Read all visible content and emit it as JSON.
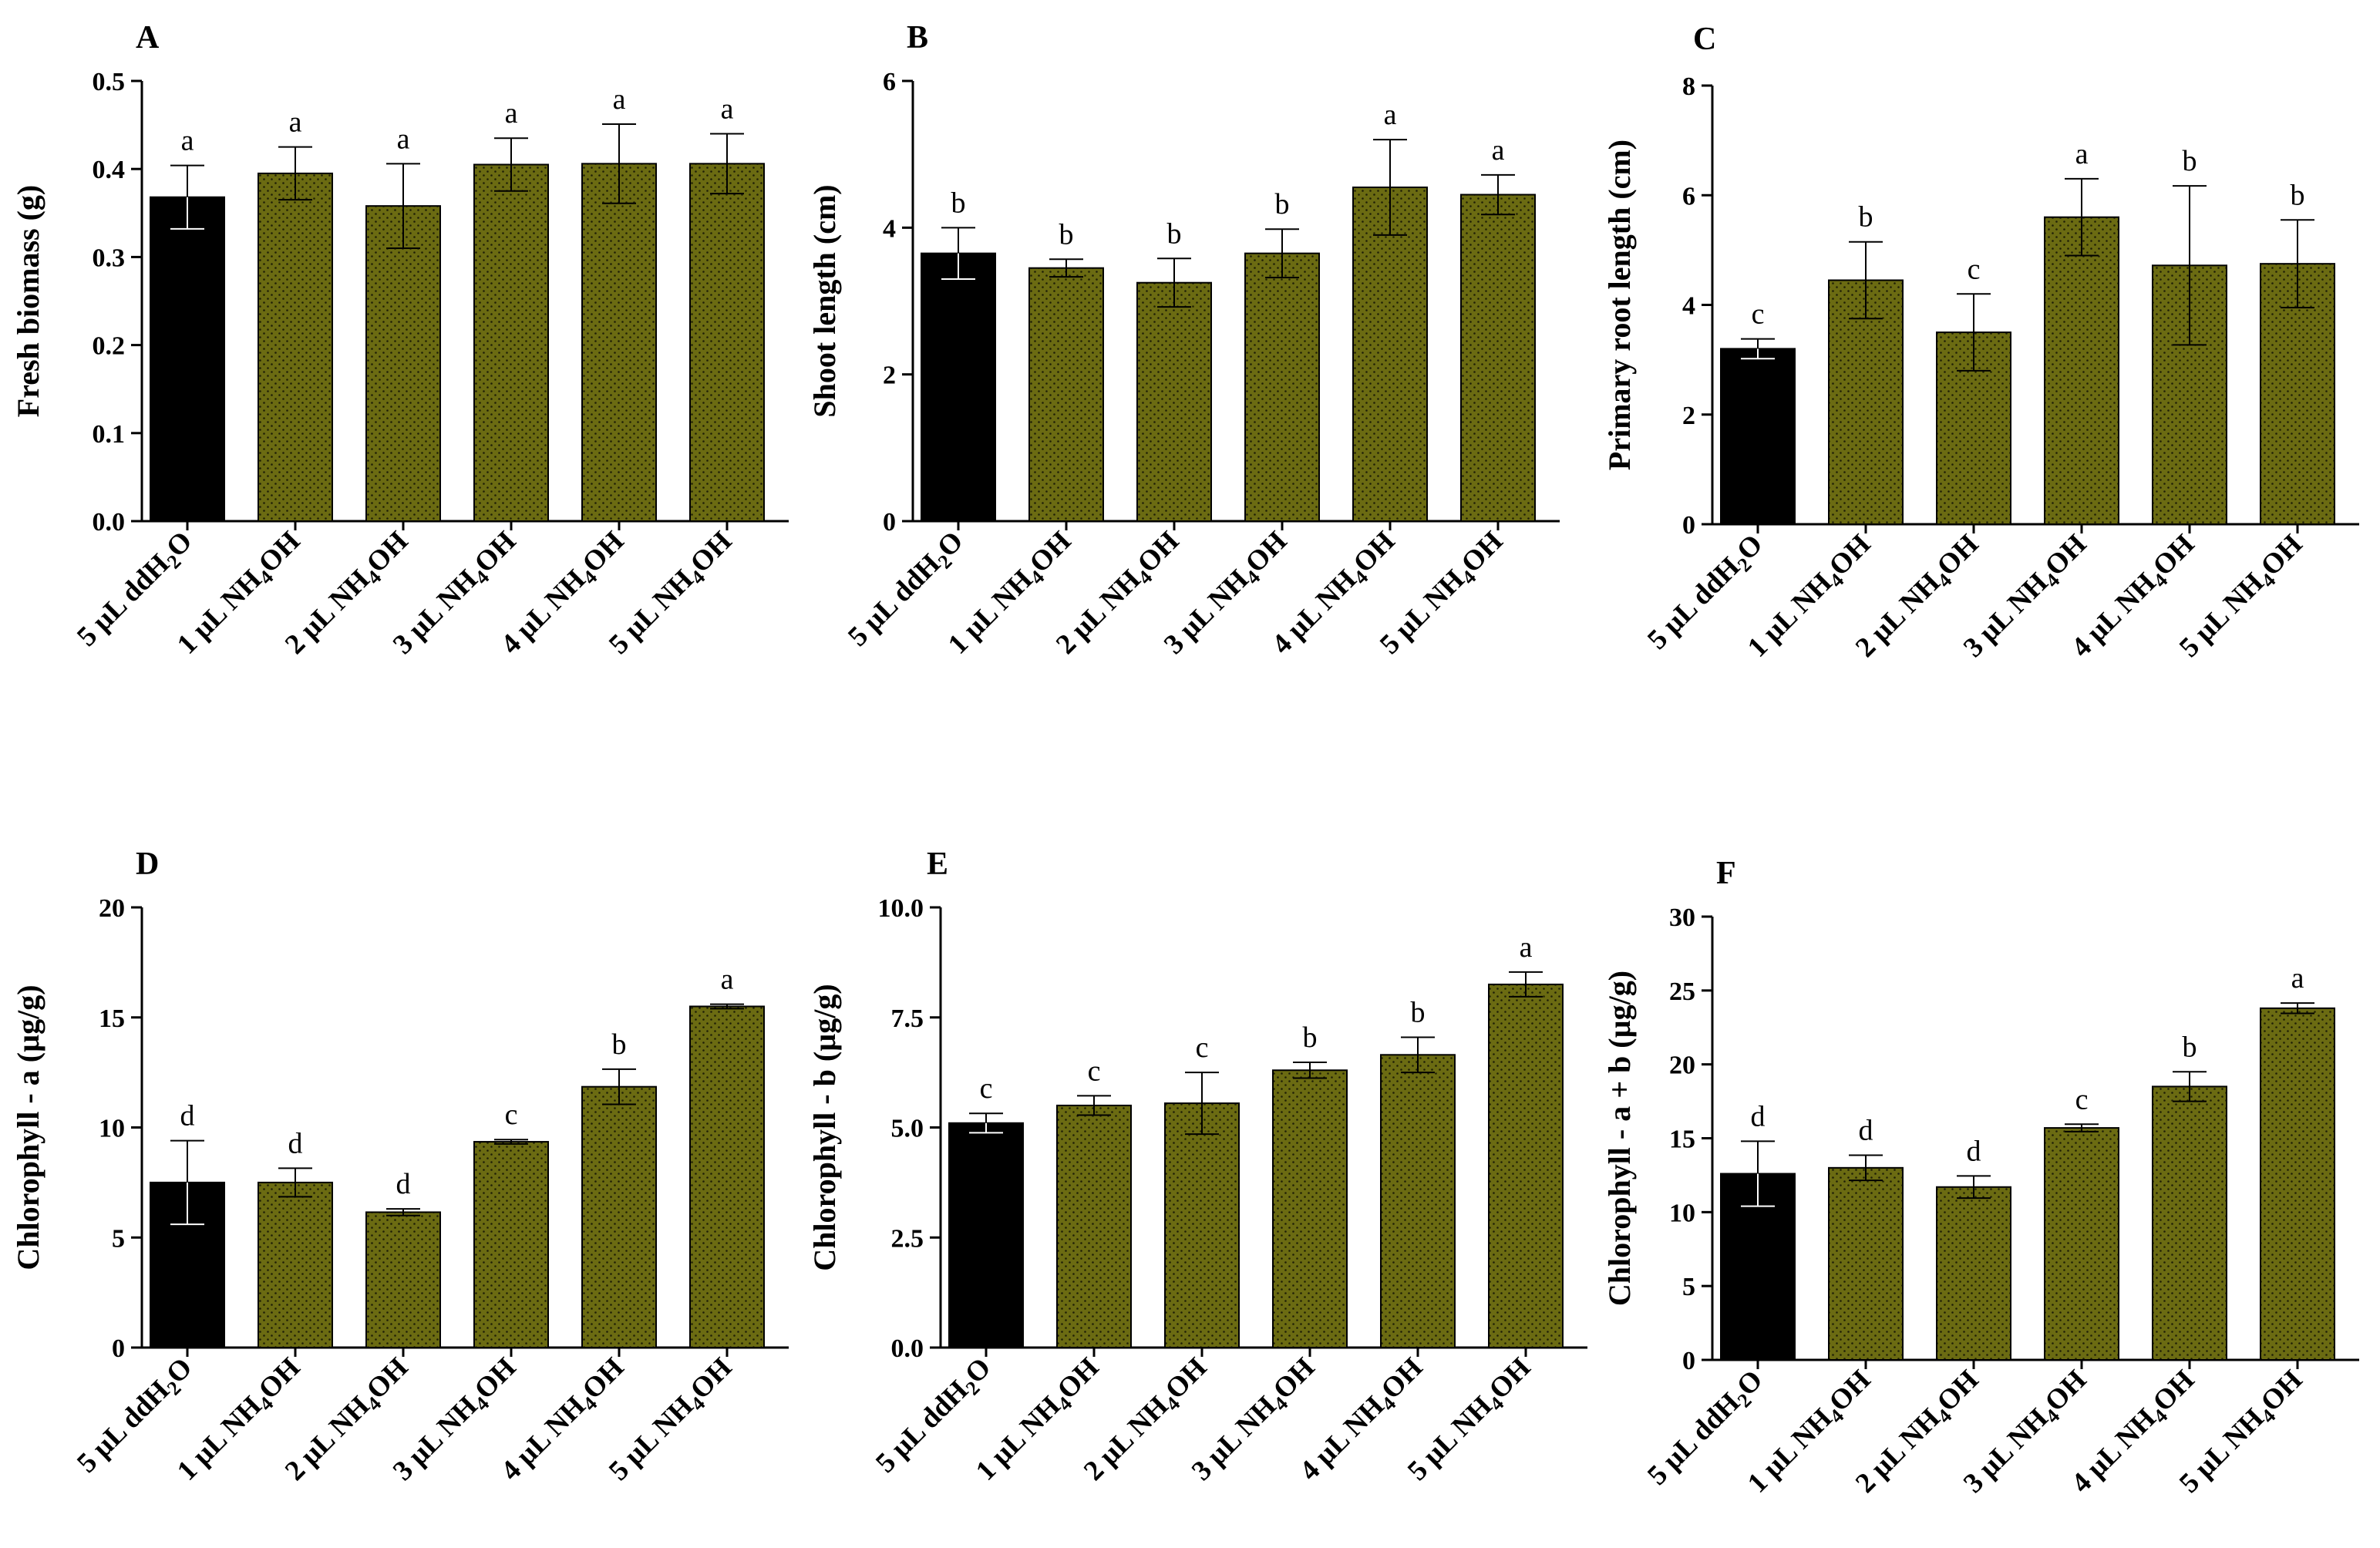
{
  "colors": {
    "control": "#000000",
    "treatment": "#6b6b12",
    "dot": "#1f1f06",
    "axis": "#000000"
  },
  "x_categories": [
    {
      "pre": "5 µL ddH",
      "sub": "2",
      "post": "O"
    },
    {
      "pre": "1 µL NH",
      "sub": "4",
      "post": "OH"
    },
    {
      "pre": "2 µL NH",
      "sub": "4",
      "post": "OH"
    },
    {
      "pre": "3 µL NH",
      "sub": "4",
      "post": "OH"
    },
    {
      "pre": "4 µL NH",
      "sub": "4",
      "post": "OH"
    },
    {
      "pre": "5 µL NH",
      "sub": "4",
      "post": "OH"
    }
  ],
  "chart_data": [
    {
      "type": "bar",
      "panel": "A",
      "ylabel": "Fresh biomass (g)",
      "ylim": [
        0,
        0.5
      ],
      "yticks": [
        "0.0",
        "0.1",
        "0.2",
        "0.3",
        "0.4",
        "0.5"
      ],
      "categories": [
        "5 µL ddH2O",
        "1 µL NH4OH",
        "2 µL NH4OH",
        "3 µL NH4OH",
        "4 µL NH4OH",
        "5 µL NH4OH"
      ],
      "values": [
        0.368,
        0.395,
        0.358,
        0.405,
        0.406,
        0.406
      ],
      "errors": [
        0.036,
        0.03,
        0.048,
        0.03,
        0.045,
        0.034
      ],
      "letters": [
        "a",
        "a",
        "a",
        "a",
        "a",
        "a"
      ]
    },
    {
      "type": "bar",
      "panel": "B",
      "ylabel": "Shoot length  (cm)",
      "ylim": [
        0,
        6
      ],
      "yticks": [
        "0",
        "2",
        "4",
        "6"
      ],
      "categories": [
        "5 µL ddH2O",
        "1 µL NH4OH",
        "2 µL NH4OH",
        "3 µL NH4OH",
        "4 µL NH4OH",
        "5 µL NH4OH"
      ],
      "values": [
        3.65,
        3.45,
        3.25,
        3.65,
        4.55,
        4.45
      ],
      "errors": [
        0.35,
        0.12,
        0.33,
        0.33,
        0.65,
        0.27
      ],
      "letters": [
        "b",
        "b",
        "b",
        "b",
        "a",
        "a"
      ]
    },
    {
      "type": "bar",
      "panel": "C",
      "ylabel": "Primary root length  (cm)",
      "ylim": [
        0,
        8
      ],
      "yticks": [
        "0",
        "2",
        "4",
        "6",
        "8"
      ],
      "categories": [
        "5 µL ddH2O",
        "1 µL NH4OH",
        "2 µL NH4OH",
        "3 µL NH4OH",
        "4 µL NH4OH",
        "5 µL NH4OH"
      ],
      "values": [
        3.2,
        4.45,
        3.5,
        5.6,
        4.72,
        4.75
      ],
      "errors": [
        0.18,
        0.7,
        0.7,
        0.7,
        1.45,
        0.8
      ],
      "letters": [
        "c",
        "b",
        "c",
        "a",
        "b",
        "b"
      ]
    },
    {
      "type": "bar",
      "panel": "D",
      "ylabel": "Chlorophyll - a (µg/g)",
      "ylim": [
        0,
        20
      ],
      "yticks": [
        "0",
        "5",
        "10",
        "15",
        "20"
      ],
      "categories": [
        "5 µL ddH2O",
        "1 µL NH4OH",
        "2 µL NH4OH",
        "3 µL NH4OH",
        "4 µL NH4OH",
        "5 µL NH4OH"
      ],
      "values": [
        7.5,
        7.5,
        6.15,
        9.35,
        11.85,
        15.5
      ],
      "errors": [
        1.9,
        0.65,
        0.15,
        0.1,
        0.8,
        0.1
      ],
      "letters": [
        "d",
        "d",
        "d",
        "c",
        "b",
        "a"
      ]
    },
    {
      "type": "bar",
      "panel": "E",
      "ylabel": "Chlorophyll - b (µg/g)",
      "ylim": [
        0,
        10
      ],
      "yticks": [
        "0.0",
        "2.5",
        "5.0",
        "7.5",
        "10.0"
      ],
      "categories": [
        "5 µL ddH2O",
        "1 µL NH4OH",
        "2 µL NH4OH",
        "3 µL NH4OH",
        "4 µL NH4OH",
        "5 µL NH4OH"
      ],
      "values": [
        5.1,
        5.5,
        5.55,
        6.3,
        6.65,
        8.25
      ],
      "errors": [
        0.22,
        0.22,
        0.7,
        0.18,
        0.4,
        0.28
      ],
      "letters": [
        "c",
        "c",
        "c",
        "b",
        "b",
        "a"
      ]
    },
    {
      "type": "bar",
      "panel": "F",
      "ylabel": "Chlorophyll - a + b (µg/g)",
      "ylim": [
        0,
        30
      ],
      "yticks": [
        "0",
        "5",
        "10",
        "15",
        "20",
        "25",
        "30"
      ],
      "categories": [
        "5 µL ddH2O",
        "1 µL NH4OH",
        "2 µL NH4OH",
        "3 µL NH4OH",
        "4 µL NH4OH",
        "5 µL NH4OH"
      ],
      "values": [
        12.6,
        13.0,
        11.7,
        15.7,
        18.5,
        23.8
      ],
      "errors": [
        2.2,
        0.85,
        0.75,
        0.25,
        1.0,
        0.35
      ],
      "letters": [
        "d",
        "d",
        "d",
        "c",
        "b",
        "a"
      ]
    }
  ]
}
